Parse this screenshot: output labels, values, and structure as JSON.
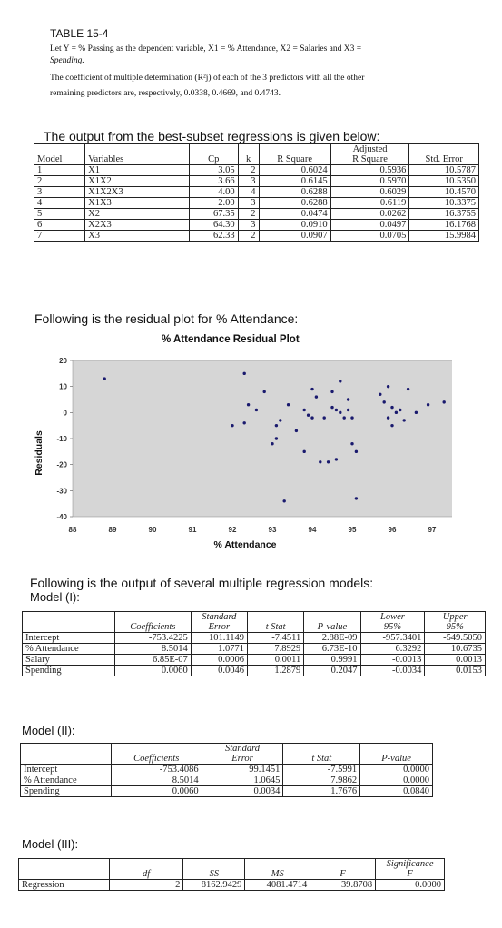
{
  "header": {
    "table_title": "TABLE 15-4",
    "intro_line1": "Let Y = % Passing as the dependent variable, X1 = % Attendance, X2 = Salaries and X3 =",
    "intro_line2": "Spending.",
    "intro_line3": "The coefficient of multiple determination (R²j) of each of the 3 predictors with all the other",
    "intro_line4": "remaining predictors are, respectively, 0.0338, 0.4669, and 0.4743."
  },
  "best_subset": {
    "caption": "The output from the best-subset regressions is given below:",
    "headers": [
      "Model",
      "Variables",
      "Cp",
      "k",
      "R Square",
      "Adjusted R Square",
      "Std. Error"
    ],
    "header_adjusted_top": "Adjusted",
    "header_adjusted_bottom": "R Square",
    "rows": [
      [
        "1",
        "X1",
        "3.05",
        "2",
        "0.6024",
        "0.5936",
        "10.5787"
      ],
      [
        "2",
        "X1X2",
        "3.66",
        "3",
        "0.6145",
        "0.5970",
        "10.5350"
      ],
      [
        "3",
        "X1X2X3",
        "4.00",
        "4",
        "0.6288",
        "0.6029",
        "10.4570"
      ],
      [
        "4",
        "X1X3",
        "2.00",
        "3",
        "0.6288",
        "0.6119",
        "10.3375"
      ],
      [
        "5",
        "X2",
        "67.35",
        "2",
        "0.0474",
        "0.0262",
        "16.3755"
      ],
      [
        "6",
        "X2X3",
        "64.30",
        "3",
        "0.0910",
        "0.0497",
        "16.1768"
      ],
      [
        "7",
        "X3",
        "62.33",
        "2",
        "0.0907",
        "0.0705",
        "15.9984"
      ]
    ]
  },
  "residual_section": {
    "caption": "Following is the residual plot for % Attendance:"
  },
  "chart_data": {
    "type": "scatter",
    "title": "% Attendance  Residual Plot",
    "xlabel": "% Attendance",
    "ylabel": "Residuals",
    "xlim": [
      88,
      98
    ],
    "ylim": [
      -40,
      20
    ],
    "x_ticks": [
      "88",
      "89",
      "90",
      "91",
      "92",
      "93",
      "94",
      "95",
      "96",
      "97",
      "98"
    ],
    "y_ticks": [
      "20",
      "10",
      "0",
      "-10",
      "-20",
      "-30",
      "-40"
    ],
    "grid": false,
    "legend": "none",
    "point_color": "#1a1a6e",
    "background_color": "#d6d6d6",
    "x": [
      88.8,
      92.0,
      92.3,
      92.3,
      92.4,
      92.6,
      92.8,
      93.0,
      93.1,
      93.1,
      93.2,
      93.3,
      93.4,
      93.6,
      93.8,
      93.8,
      93.9,
      94.0,
      94.0,
      94.1,
      94.2,
      94.3,
      94.4,
      94.5,
      94.5,
      94.6,
      94.6,
      94.7,
      94.7,
      94.8,
      94.9,
      94.9,
      95.0,
      95.0,
      95.1,
      95.7,
      95.8,
      95.9,
      95.9,
      96.0,
      96.0,
      96.1,
      96.2,
      96.3,
      96.4,
      96.6,
      96.9,
      97.3
    ],
    "y": [
      13,
      -5,
      15,
      -4,
      3,
      1,
      8,
      -12,
      -10,
      -5,
      -3,
      -34,
      3,
      -7,
      1,
      -15,
      -1,
      9,
      -2,
      6,
      -19,
      -2,
      -19,
      8,
      2,
      -18,
      1,
      12,
      0,
      -2,
      5,
      1,
      -2,
      -12,
      -15,
      7,
      4,
      -2,
      10,
      2,
      -5,
      0,
      1,
      -3,
      9,
      0,
      3,
      4
    ],
    "extra_point": {
      "x": 95.1,
      "y": -33
    }
  },
  "multi_section": {
    "caption": "Following is the output of several multiple regression models:"
  },
  "model1": {
    "label": "Model (I):",
    "headers": [
      "",
      "Coefficients",
      "Standard Error",
      "t Stat",
      "P-value",
      "Lower 95%",
      "Upper 95%"
    ],
    "std_top": "Standard",
    "std_bottom": "Error",
    "lower_top": "Lower",
    "lower_bottom": "95%",
    "upper_top": "Upper",
    "upper_bottom": "95%",
    "rows": [
      [
        "Intercept",
        "-753.4225",
        "101.1149",
        "-7.4511",
        "2.88E-09",
        "-957.3401",
        "-549.5050"
      ],
      [
        "% Attendance",
        "8.5014",
        "1.0771",
        "7.8929",
        "6.73E-10",
        "6.3292",
        "10.6735"
      ],
      [
        "Salary",
        "6.85E-07",
        "0.0006",
        "0.0011",
        "0.9991",
        "-0.0013",
        "0.0013"
      ],
      [
        "Spending",
        "0.0060",
        "0.0046",
        "1.2879",
        "0.2047",
        "-0.0034",
        "0.0153"
      ]
    ]
  },
  "model2": {
    "label": "Model (II):",
    "headers": [
      "",
      "Coefficients",
      "Standard Error",
      "t Stat",
      "P-value"
    ],
    "std_top": "Standard",
    "std_bottom": "Error",
    "rows": [
      [
        "Intercept",
        "-753.4086",
        "99.1451",
        "-7.5991",
        "0.0000"
      ],
      [
        "% Attendance",
        "8.5014",
        "1.0645",
        "7.9862",
        "0.0000"
      ],
      [
        "Spending",
        "0.0060",
        "0.0034",
        "1.7676",
        "0.0840"
      ]
    ]
  },
  "model3": {
    "label": "Model (III):",
    "headers": [
      "",
      "df",
      "SS",
      "MS",
      "F",
      "Significance F"
    ],
    "sig_top": "Significance",
    "sig_bottom": "F",
    "rows": [
      [
        "Regression",
        "2",
        "8162.9429",
        "4081.4714",
        "39.8708",
        "0.0000"
      ]
    ]
  }
}
